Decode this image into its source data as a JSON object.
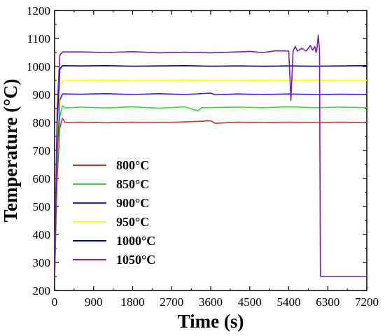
{
  "chart_data": {
    "type": "line",
    "title": "",
    "xlabel": "Time (s)",
    "ylabel": "Temperature (°C)",
    "xlim": [
      0,
      7200
    ],
    "ylim": [
      200,
      1200
    ],
    "xticks": [
      0,
      900,
      1800,
      2700,
      3600,
      4500,
      5400,
      6300,
      7200
    ],
    "yticks": [
      200,
      300,
      400,
      500,
      600,
      700,
      800,
      900,
      1000,
      1100,
      1200
    ],
    "grid": false,
    "legend_position": "center-left",
    "series": [
      {
        "name": "800°C",
        "color": "#c0392b",
        "points": [
          [
            0,
            250
          ],
          [
            60,
            600
          ],
          [
            120,
            780
          ],
          [
            180,
            815
          ],
          [
            240,
            800
          ],
          [
            600,
            801
          ],
          [
            1200,
            799
          ],
          [
            1800,
            801
          ],
          [
            2400,
            800
          ],
          [
            3000,
            802
          ],
          [
            3600,
            806
          ],
          [
            3700,
            797
          ],
          [
            4200,
            801
          ],
          [
            4800,
            800
          ],
          [
            5400,
            801
          ],
          [
            6000,
            800
          ],
          [
            6600,
            801
          ],
          [
            7200,
            799
          ]
        ]
      },
      {
        "name": "850°C",
        "color": "#33dd33",
        "points": [
          [
            0,
            250
          ],
          [
            60,
            650
          ],
          [
            120,
            820
          ],
          [
            180,
            860
          ],
          [
            240,
            852
          ],
          [
            600,
            855
          ],
          [
            1200,
            852
          ],
          [
            1800,
            856
          ],
          [
            2400,
            851
          ],
          [
            3000,
            856
          ],
          [
            3300,
            842
          ],
          [
            3400,
            853
          ],
          [
            4200,
            855
          ],
          [
            4800,
            853
          ],
          [
            5400,
            856
          ],
          [
            6000,
            853
          ],
          [
            6600,
            855
          ],
          [
            7200,
            853
          ]
        ]
      },
      {
        "name": "900°C",
        "color": "#2222ee",
        "points": [
          [
            0,
            250
          ],
          [
            60,
            700
          ],
          [
            120,
            880
          ],
          [
            180,
            902
          ],
          [
            600,
            901
          ],
          [
            1200,
            903
          ],
          [
            1800,
            900
          ],
          [
            2400,
            903
          ],
          [
            3000,
            900
          ],
          [
            3600,
            905
          ],
          [
            3700,
            899
          ],
          [
            4200,
            902
          ],
          [
            4800,
            900
          ],
          [
            5400,
            902
          ],
          [
            6000,
            900
          ],
          [
            6600,
            901
          ],
          [
            7200,
            900
          ]
        ]
      },
      {
        "name": "950°C",
        "color": "#ffff00",
        "points": [
          [
            0,
            250
          ],
          [
            60,
            750
          ],
          [
            120,
            930
          ],
          [
            180,
            950
          ],
          [
            600,
            950
          ],
          [
            1200,
            951
          ],
          [
            1800,
            950
          ],
          [
            2400,
            950
          ],
          [
            3000,
            951
          ],
          [
            3600,
            950
          ],
          [
            4200,
            950
          ],
          [
            4800,
            951
          ],
          [
            5400,
            950
          ],
          [
            6000,
            951
          ],
          [
            6600,
            950
          ],
          [
            7200,
            950
          ]
        ]
      },
      {
        "name": "1000°C",
        "color": "#000080",
        "points": [
          [
            0,
            250
          ],
          [
            60,
            800
          ],
          [
            120,
            990
          ],
          [
            180,
            1003
          ],
          [
            600,
            1002
          ],
          [
            1200,
            1003
          ],
          [
            1800,
            1001
          ],
          [
            2400,
            1002
          ],
          [
            3000,
            1003
          ],
          [
            3600,
            1001
          ],
          [
            4200,
            1002
          ],
          [
            4800,
            1001
          ],
          [
            5400,
            1002
          ],
          [
            6000,
            1001
          ],
          [
            6600,
            1002
          ],
          [
            7200,
            1003
          ]
        ]
      },
      {
        "name": "1050°C",
        "color": "#7b1fa2",
        "points": [
          [
            0,
            250
          ],
          [
            60,
            850
          ],
          [
            120,
            1040
          ],
          [
            180,
            1052
          ],
          [
            600,
            1052
          ],
          [
            1200,
            1050
          ],
          [
            1800,
            1053
          ],
          [
            2400,
            1049
          ],
          [
            3000,
            1051
          ],
          [
            3600,
            1049
          ],
          [
            4200,
            1052
          ],
          [
            4500,
            1054
          ],
          [
            4800,
            1050
          ],
          [
            5100,
            1056
          ],
          [
            5400,
            1055
          ],
          [
            5450,
            880
          ],
          [
            5500,
            1055
          ],
          [
            5550,
            1072
          ],
          [
            5600,
            1055
          ],
          [
            5700,
            1065
          ],
          [
            5800,
            1055
          ],
          [
            5900,
            1075
          ],
          [
            5950,
            1058
          ],
          [
            6000,
            1072
          ],
          [
            6030,
            1050
          ],
          [
            6050,
            1060
          ],
          [
            6080,
            1112
          ],
          [
            6110,
            1060
          ],
          [
            6130,
            250
          ],
          [
            7200,
            250
          ]
        ]
      }
    ]
  }
}
